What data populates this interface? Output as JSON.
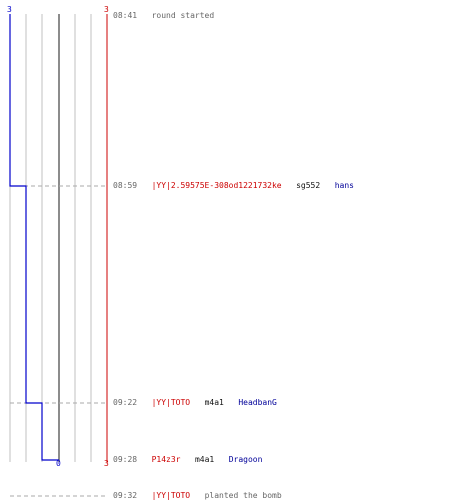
{
  "scores": {
    "blue_start": "3",
    "red_start": "3",
    "blue_end": "0",
    "red_end": "3"
  },
  "events": [
    {
      "time": "08:41",
      "type": "text",
      "text": "round started"
    },
    {
      "time": "08:59",
      "type": "kill",
      "killer": "|YY|2.59575E-308od1221732ke",
      "weapon": "sg552",
      "victim": "hans"
    },
    {
      "time": "09:22",
      "type": "kill",
      "killer": "|YY|TOTO",
      "weapon": "m4a1",
      "victim": "HeadbanG"
    },
    {
      "time": "09:28",
      "type": "kill",
      "killer": "P14z3r",
      "weapon": "m4a1",
      "victim": "Dragoon"
    },
    {
      "time": "09:32",
      "type": "action",
      "killer": "|YY|TOTO",
      "text": "planted the bomb"
    }
  ],
  "colors": {
    "team_blue": "#0000cc",
    "team_red": "#cc0000",
    "grid": "#c0c0c0",
    "dashed": "#aaaaaa"
  }
}
